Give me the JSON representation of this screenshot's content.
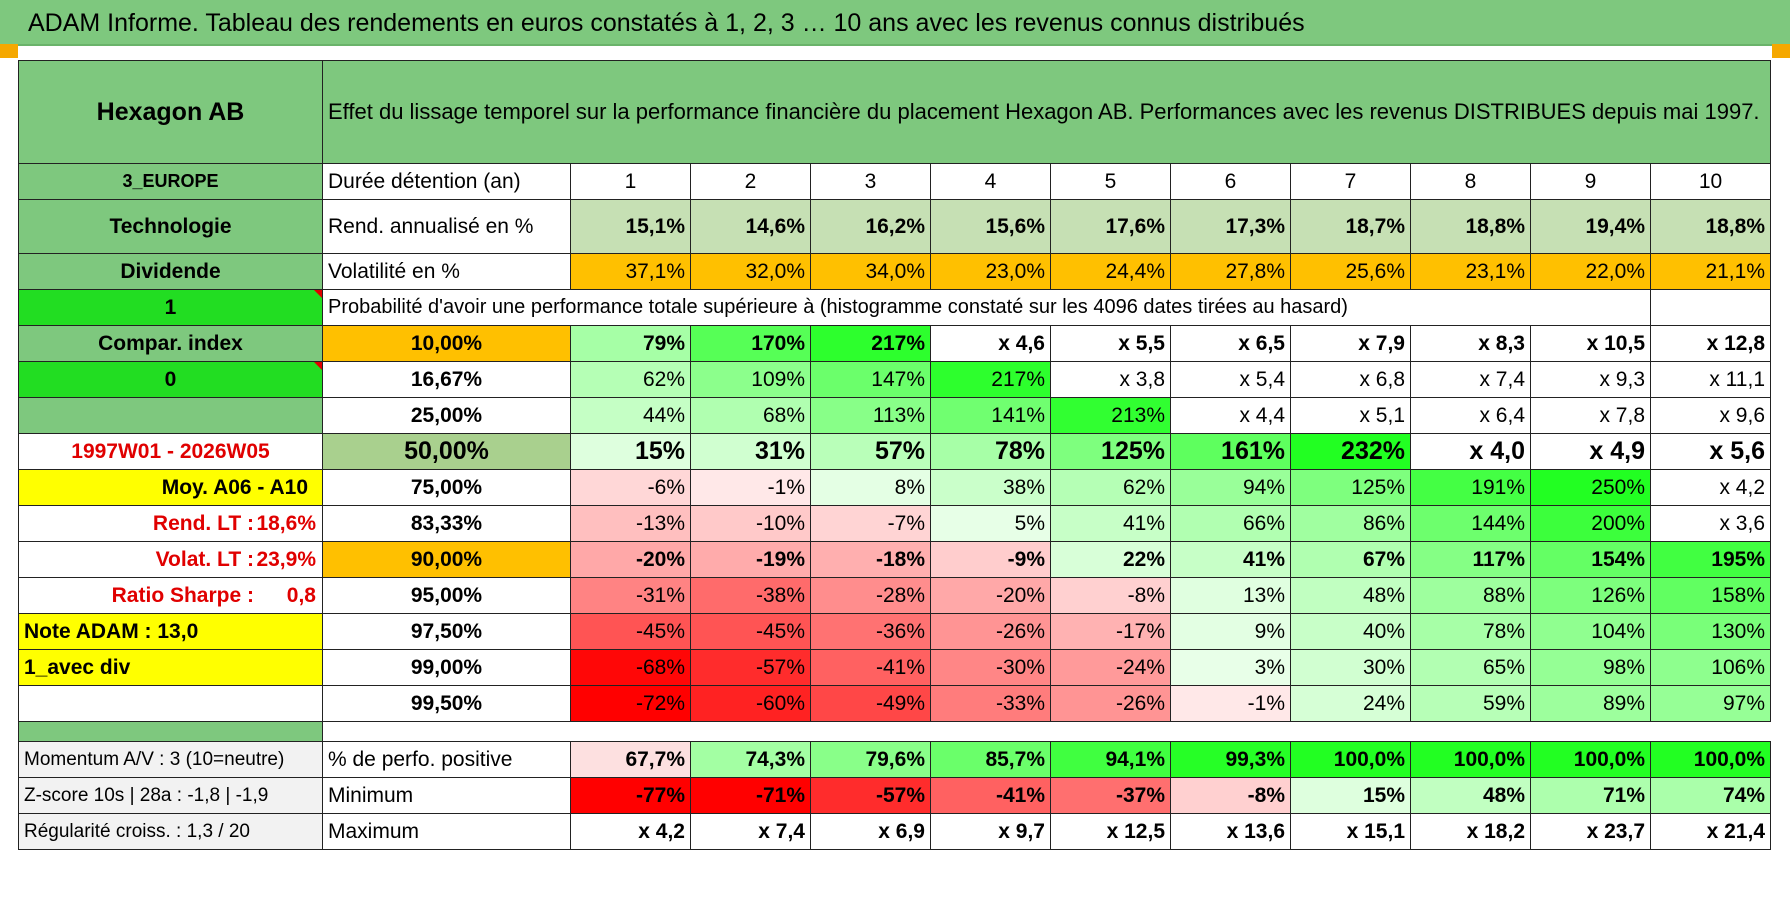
{
  "banner": "ADAM Informe. Tableau des rendements en euros constatés à 1, 2, 3 … 10 ans avec les revenus connus distribués",
  "left": {
    "name": "Hexagon AB",
    "region": "3_EUROPE",
    "sector": "Technologie",
    "income": "Dividende",
    "flag1": "1",
    "compar": "Compar. index",
    "flag0": "0",
    "blank": "",
    "period": "1997W01 - 2026W05",
    "moy": "Moy. A06 - A10",
    "rend_lt_label": "Rend. LT :",
    "rend_lt_value": "18,6%",
    "volat_lt_label": "Volat. LT :",
    "volat_lt_value": "23,9%",
    "sharpe_label": "Ratio Sharpe :",
    "sharpe_value": "0,8",
    "note": "Note ADAM : 13,0",
    "avec_div": "1_avec div",
    "momentum": "Momentum A/V : 3 (10=neutre)",
    "zscore": "Z-score 10s | 28a : -1,8 | -1,9",
    "regularite": "Régularité croiss. : 1,3 / 20"
  },
  "header_text": "Effet du lissage temporel sur la performance financière du placement Hexagon AB. Performances avec les revenus DISTRIBUES depuis mai 1997.",
  "duree_label": "Durée détention (an)",
  "years": [
    "1",
    "2",
    "3",
    "4",
    "5",
    "6",
    "7",
    "8",
    "9",
    "10"
  ],
  "rend_label": "Rend. annualisé en %",
  "rend": [
    "15,1%",
    "14,6%",
    "16,2%",
    "15,6%",
    "17,6%",
    "17,3%",
    "18,7%",
    "18,8%",
    "19,4%",
    "18,8%"
  ],
  "vol_label": "Volatilité en %",
  "vol": [
    "37,1%",
    "32,0%",
    "34,0%",
    "23,0%",
    "24,4%",
    "27,8%",
    "25,6%",
    "23,1%",
    "22,0%",
    "21,1%"
  ],
  "proba_label": "Probabilité d'avoir une performance totale supérieure à (histogramme constaté sur les 4096 dates tirées au hasard)",
  "proba_rows": [
    {
      "pct": "10,00%",
      "vals": [
        "79%",
        "170%",
        "217%",
        "x 4,6",
        "x 5,5",
        "x 6,5",
        "x 7,9",
        "x 8,3",
        "x 10,5",
        "x 12,8"
      ]
    },
    {
      "pct": "16,67%",
      "vals": [
        "62%",
        "109%",
        "147%",
        "217%",
        "x 3,8",
        "x 5,4",
        "x 6,8",
        "x 7,4",
        "x 9,3",
        "x 11,1"
      ]
    },
    {
      "pct": "25,00%",
      "vals": [
        "44%",
        "68%",
        "113%",
        "141%",
        "213%",
        "x 4,4",
        "x 5,1",
        "x 6,4",
        "x 7,8",
        "x 9,6"
      ]
    },
    {
      "pct": "50,00%",
      "vals": [
        "15%",
        "31%",
        "57%",
        "78%",
        "125%",
        "161%",
        "232%",
        "x 4,0",
        "x 4,9",
        "x 5,6"
      ]
    },
    {
      "pct": "75,00%",
      "vals": [
        "-6%",
        "-1%",
        "8%",
        "38%",
        "62%",
        "94%",
        "125%",
        "191%",
        "250%",
        "x 4,2"
      ]
    },
    {
      "pct": "83,33%",
      "vals": [
        "-13%",
        "-10%",
        "-7%",
        "5%",
        "41%",
        "66%",
        "86%",
        "144%",
        "200%",
        "x 3,6"
      ]
    },
    {
      "pct": "90,00%",
      "vals": [
        "-20%",
        "-19%",
        "-18%",
        "-9%",
        "22%",
        "41%",
        "67%",
        "117%",
        "154%",
        "195%"
      ]
    },
    {
      "pct": "95,00%",
      "vals": [
        "-31%",
        "-38%",
        "-28%",
        "-20%",
        "-8%",
        "13%",
        "48%",
        "88%",
        "126%",
        "158%"
      ]
    },
    {
      "pct": "97,50%",
      "vals": [
        "-45%",
        "-45%",
        "-36%",
        "-26%",
        "-17%",
        "9%",
        "40%",
        "78%",
        "104%",
        "130%"
      ]
    },
    {
      "pct": "99,00%",
      "vals": [
        "-68%",
        "-57%",
        "-41%",
        "-30%",
        "-24%",
        "3%",
        "30%",
        "65%",
        "98%",
        "106%"
      ]
    },
    {
      "pct": "99,50%",
      "vals": [
        "-72%",
        "-60%",
        "-49%",
        "-33%",
        "-26%",
        "-1%",
        "24%",
        "59%",
        "89%",
        "97%"
      ]
    }
  ],
  "positive_label": "% de perfo. positive",
  "positive": [
    "67,7%",
    "74,3%",
    "79,6%",
    "85,7%",
    "94,1%",
    "99,3%",
    "100,0%",
    "100,0%",
    "100,0%",
    "100,0%"
  ],
  "min_label": "Minimum",
  "min": [
    "-77%",
    "-71%",
    "-57%",
    "-41%",
    "-37%",
    "-8%",
    "15%",
    "48%",
    "71%",
    "74%"
  ],
  "max_label": "Maximum",
  "max": [
    "x 4,2",
    "x 7,4",
    "x 6,9",
    "x 9,7",
    "x 12,5",
    "x 13,6",
    "x 15,1",
    "x 18,2",
    "x 23,7",
    "x 21,4"
  ],
  "colors": {
    "banner": "#7ec87e",
    "label_green": "#7ec87e",
    "bright_green": "#22dd22",
    "rend_bg": "#c6e0b4",
    "orange": "#ffc000",
    "yellow": "#ffff00",
    "red_text": "#e00000"
  }
}
